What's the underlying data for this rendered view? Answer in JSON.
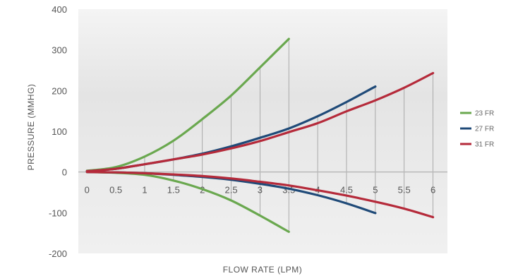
{
  "chart_data": {
    "type": "line",
    "xlabel": "FLOW RATE (LPM)",
    "ylabel": "PRESSURE (MMHG)",
    "xlim": [
      -0.15,
      6.25
    ],
    "ylim": [
      -200,
      400
    ],
    "x_ticks": [
      0,
      0.5,
      1,
      1.5,
      2,
      2.5,
      3,
      3.5,
      4,
      4.5,
      5,
      5.5,
      6
    ],
    "x_tick_labels": [
      "0",
      "0.5",
      "1",
      "1.5",
      "2",
      "2.5",
      "3",
      "3.5",
      "4",
      "4.5",
      "5",
      "5.5",
      "6"
    ],
    "y_ticks": [
      400,
      300,
      200,
      100,
      0,
      -100,
      -200
    ],
    "y_tick_labels": [
      "400",
      "300",
      "200",
      "100",
      "0",
      "-100",
      "-200"
    ],
    "grid": "vertical drop lines between curves",
    "background": "light gray gradient (darker at top)",
    "legend_position": "right",
    "series": [
      {
        "name": "23 FR",
        "color": "#6aa84f",
        "upper": {
          "x": [
            0,
            0.5,
            1,
            1.5,
            2,
            2.5,
            3,
            3.5
          ],
          "y": [
            3,
            12,
            38,
            77,
            130,
            188,
            257,
            327
          ]
        },
        "lower": {
          "x": [
            0,
            0.5,
            1,
            1.5,
            2,
            2.5,
            3,
            3.5
          ],
          "y": [
            0,
            -2,
            -7,
            -21,
            -42,
            -70,
            -107,
            -147
          ]
        }
      },
      {
        "name": "27 FR",
        "color": "#1f4a78",
        "upper": {
          "x": [
            0,
            0.5,
            1,
            1.5,
            2,
            2.5,
            3,
            3.5,
            4,
            4.5,
            5
          ],
          "y": [
            2,
            8,
            19,
            31,
            45,
            63,
            84,
            107,
            137,
            172,
            210
          ]
        },
        "lower": {
          "x": [
            0,
            0.5,
            1,
            1.5,
            2,
            2.5,
            3,
            3.5,
            4,
            4.5,
            5
          ],
          "y": [
            0,
            -1,
            -3,
            -7,
            -12,
            -19,
            -29,
            -41,
            -57,
            -77,
            -101
          ]
        }
      },
      {
        "name": "31 FR",
        "color": "#b52a3a",
        "upper": {
          "x": [
            0,
            0.5,
            1,
            1.5,
            2,
            2.5,
            3,
            3.5,
            4,
            4.5,
            5,
            5.5,
            6
          ],
          "y": [
            2,
            8,
            19,
            31,
            43,
            58,
            76,
            98,
            120,
            149,
            176,
            207,
            243
          ]
        },
        "lower": {
          "x": [
            0,
            0.5,
            1,
            1.5,
            2,
            2.5,
            3,
            3.5,
            4,
            4.5,
            5,
            5.5,
            6
          ],
          "y": [
            0,
            -1,
            -3,
            -6,
            -10,
            -16,
            -24,
            -33,
            -45,
            -58,
            -73,
            -90,
            -111
          ]
        }
      }
    ]
  }
}
